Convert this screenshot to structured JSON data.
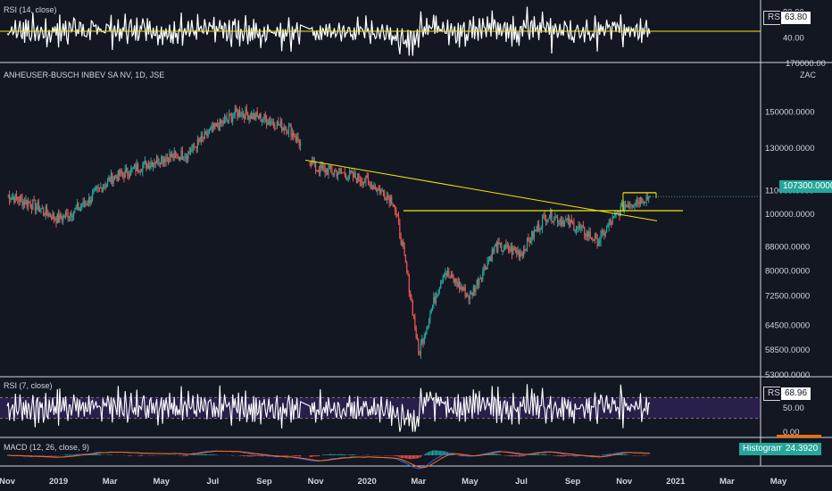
{
  "colors": {
    "background": "#131722",
    "up": "#26a69a",
    "down": "#ef5350",
    "rsi_line": "#ffffff",
    "trendline": "#f5e50a",
    "rsi_band": "#2a1f4a",
    "macd_line": "#2962ff",
    "signal_line": "#ff6d00",
    "grid_axis": "#d1d4dc"
  },
  "panes": {
    "rsi14": {
      "label": "RSI (14, close)",
      "tag_name": "RSI",
      "tag_value": "63.80",
      "ticks": [
        "80.00",
        "40.00"
      ],
      "level_line": 50
    },
    "price": {
      "label": "ANHEUSER-BUSCH INBEV SA NV, 1D, JSE",
      "currency": "ZAC",
      "top_tick_partial": "170000.00",
      "ticks": [
        "150000.0000",
        "130000.0000",
        "110000.0000",
        "100000.0000",
        "88000.0000",
        "80000.0000",
        "72500.0000",
        "64500.0000",
        "58500.0000",
        "53000.0000"
      ],
      "last_price": "107300.0000"
    },
    "rsi7": {
      "label": "RSI (7, close)",
      "tag_name": "RSI",
      "tag_value": "68.96",
      "ticks": [
        "50.00",
        "0.00"
      ],
      "band": [
        30,
        70
      ]
    },
    "macd": {
      "label": "MACD (12, 26, close, 9)",
      "tag_name": "Histogram",
      "tag_value": "24.3920"
    }
  },
  "x_axis": [
    "Nov",
    "2019",
    "Mar",
    "May",
    "Jul",
    "Sep",
    "Nov",
    "2020",
    "Mar",
    "May",
    "Jul",
    "Sep",
    "Nov",
    "2021",
    "Mar",
    "May"
  ],
  "chart_data": {
    "type": "candlestick",
    "title": "ANHEUSER-BUSCH INBEV SA NV, 1D, JSE",
    "ylabel": "ZAC",
    "y_scale": "log",
    "ylim": [
      53000,
      170000
    ],
    "x": [
      "Nov",
      "2019",
      "Mar",
      "May",
      "Jul",
      "Sep",
      "Nov",
      "2020",
      "Mar",
      "May",
      "Jul",
      "Sep",
      "Nov",
      "2021",
      "Mar",
      "May"
    ],
    "price_path": [
      {
        "date": "Nov",
        "close": 108000
      },
      {
        "date": "Dec",
        "close": 104000
      },
      {
        "date": "2019",
        "close": 98000
      },
      {
        "date": "Feb",
        "close": 104000
      },
      {
        "date": "Mar",
        "close": 115000
      },
      {
        "date": "Apr",
        "close": 120000
      },
      {
        "date": "May",
        "close": 125000
      },
      {
        "date": "Jun",
        "close": 127000
      },
      {
        "date": "Jul",
        "close": 140000
      },
      {
        "date": "Aug",
        "close": 150000
      },
      {
        "date": "Sep",
        "close": 146000
      },
      {
        "date": "Oct",
        "close": 140000
      },
      {
        "date": "Nov",
        "close": 120000
      },
      {
        "date": "Dec",
        "close": 118000
      },
      {
        "date": "2020",
        "close": 114000
      },
      {
        "date": "Feb",
        "close": 106000
      },
      {
        "date": "Mar",
        "close": 57500
      },
      {
        "date": "Apr",
        "close": 80000
      },
      {
        "date": "May",
        "close": 72000
      },
      {
        "date": "Jun",
        "close": 88000
      },
      {
        "date": "Jul",
        "close": 86000
      },
      {
        "date": "Aug",
        "close": 100000
      },
      {
        "date": "Sep",
        "close": 96000
      },
      {
        "date": "Oct",
        "close": 90000
      },
      {
        "date": "Nov",
        "close": 104000
      },
      {
        "date": "Dec",
        "close": 107300
      }
    ],
    "horizontal_line": 101500,
    "trendline": {
      "from": {
        "date": "Nov 2019",
        "value": 124000
      },
      "to": {
        "date": "Dec 2020",
        "value": 97500
      }
    },
    "box": {
      "value": 109000
    },
    "last_value": 107300,
    "legend": "top-left"
  }
}
